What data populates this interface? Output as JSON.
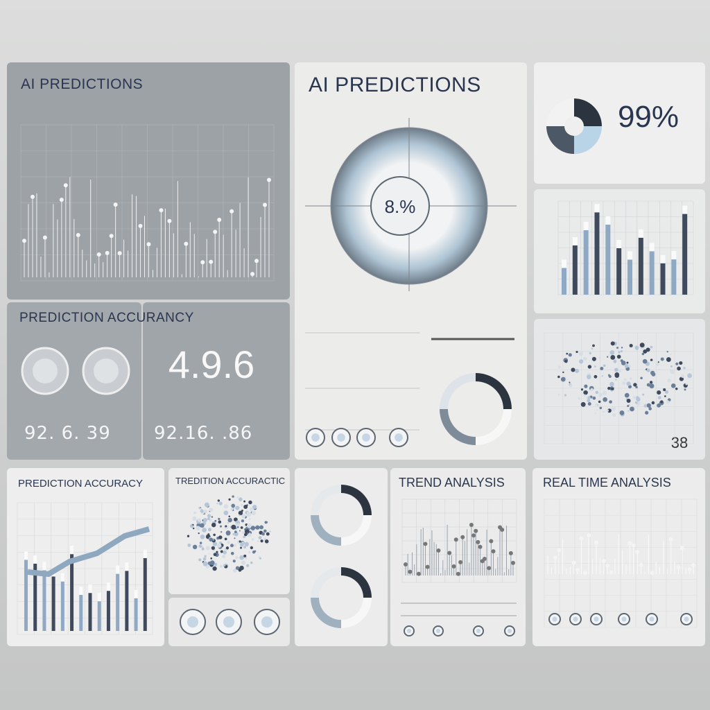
{
  "panels": {
    "ai_predictions": {
      "title": "AI PREDICTIONS"
    },
    "accuracy": {
      "title": "PREDICTION ACCURANCY",
      "main": "4.9.6",
      "left": "92. 6. 39",
      "right": "92.16. .86"
    },
    "center": {
      "title": "AI PREDICTIONS",
      "gauge": "8.%"
    },
    "summary": {
      "value": "99%"
    },
    "scatter": {
      "value": "38"
    },
    "accuracy_trend": {
      "title": "PREDICTION ACCURACY"
    },
    "map": {
      "title": "TREDITION ACCURACTIC"
    },
    "trend": {
      "title": "TREND ANALYSIS"
    },
    "realtime": {
      "title": "REAL TIME ANALYSIS"
    }
  }
}
